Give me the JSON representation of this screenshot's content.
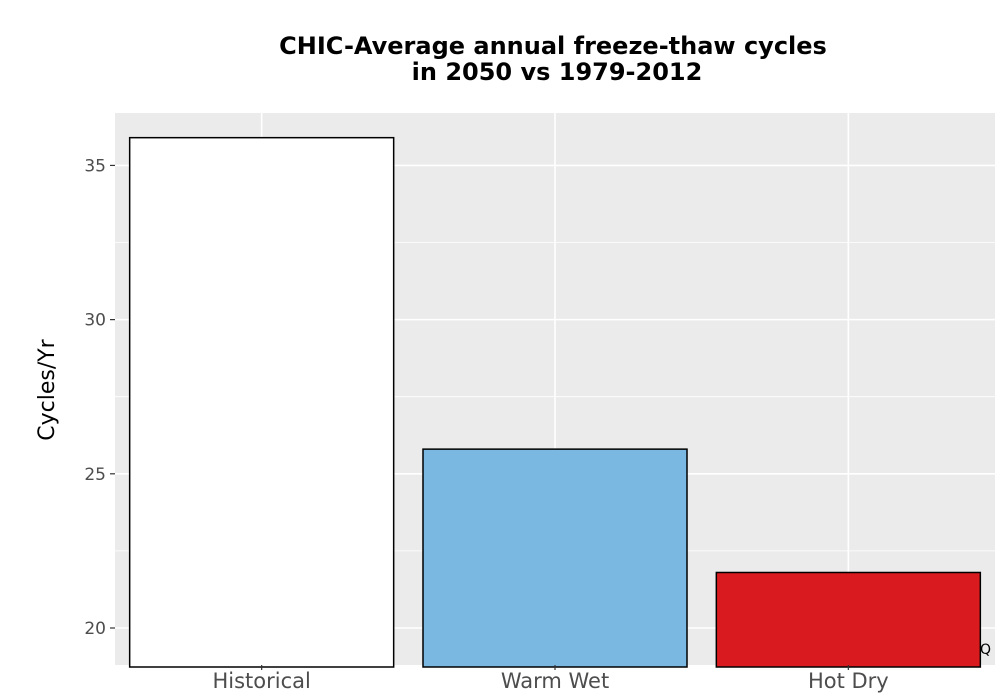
{
  "chart_data": {
    "type": "bar",
    "title_lines": [
      "CHIC-Average annual freeze-thaw cycles",
      "in 2050 vs 1979-2012"
    ],
    "xlabel": "",
    "ylabel": "Cycles/Yr",
    "categories": [
      "Historical",
      "Warm Wet",
      "Hot Dry"
    ],
    "values": [
      35.9,
      25.8,
      21.8
    ],
    "bar_colors": [
      "#ffffff",
      "#7ab8e1",
      "#d91a1e"
    ],
    "bar_border_color": "#000000",
    "ylim": [
      18.8,
      36.7
    ],
    "yticks": [
      20,
      25,
      30,
      35
    ],
    "grid": true,
    "panel_background": "#ebebeb",
    "grid_color": "#ffffff",
    "legend": "none",
    "corner_note": "Q"
  }
}
